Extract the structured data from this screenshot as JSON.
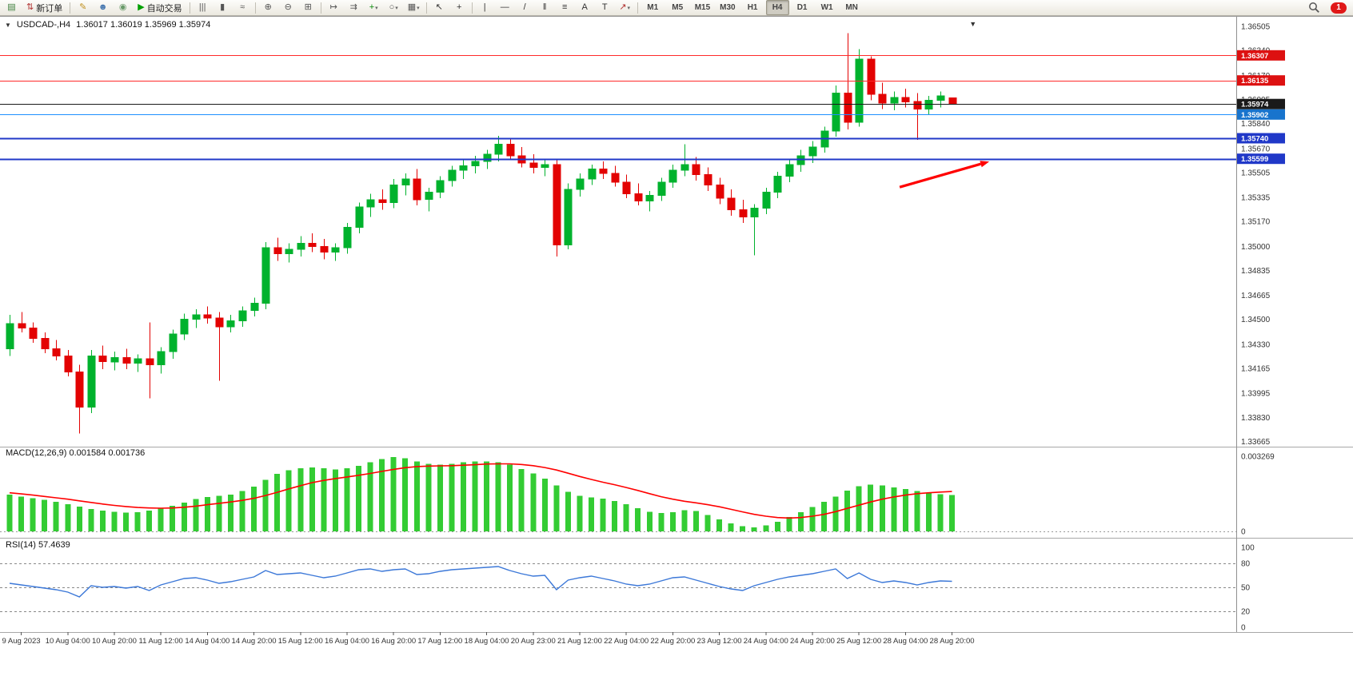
{
  "window": {
    "collapse_glyph": "▼",
    "title": "USDCAD-,H4",
    "ohlc": "1.36017 1.36019 1.35969 1.35974"
  },
  "toolbar": {
    "items": [
      {
        "name": "new-chart-button",
        "glyph": "▤",
        "color": "#3a7d3a"
      },
      {
        "name": "new-order-button",
        "glyph": "⇅",
        "color": "#b03030",
        "label": "新订单"
      },
      {
        "sep": true
      },
      {
        "name": "metaeditor-button",
        "glyph": "✎",
        "color": "#c09020"
      },
      {
        "name": "profiles-button",
        "glyph": "☻",
        "color": "#4878b0"
      },
      {
        "name": "market-watch-button",
        "glyph": "◉",
        "color": "#6a9a6a"
      },
      {
        "name": "autotrading-button",
        "glyph": "▶",
        "color": "#00a000",
        "label": "自动交易"
      },
      {
        "sep": true
      },
      {
        "name": "bar-chart-button",
        "glyph": "|||",
        "color": "#555"
      },
      {
        "name": "candlestick-button",
        "glyph": "▮",
        "color": "#555"
      },
      {
        "name": "line-chart-button",
        "glyph": "≈",
        "color": "#555"
      },
      {
        "sep": true
      },
      {
        "name": "zoom-in-button",
        "glyph": "⊕",
        "color": "#555"
      },
      {
        "name": "zoom-out-button",
        "glyph": "⊖",
        "color": "#555"
      },
      {
        "name": "tile-windows-button",
        "glyph": "⊞",
        "color": "#555"
      },
      {
        "sep": true
      },
      {
        "name": "auto-scroll-button",
        "glyph": "↦",
        "color": "#555"
      },
      {
        "name": "chart-shift-button",
        "glyph": "⇉",
        "color": "#555"
      },
      {
        "name": "indicators-button",
        "glyph": "+",
        "color": "#0a8a0a",
        "dd": true
      },
      {
        "name": "periods-button",
        "glyph": "○",
        "color": "#555",
        "dd": true
      },
      {
        "name": "templates-button",
        "glyph": "▦",
        "color": "#555",
        "dd": true
      },
      {
        "sep": true
      },
      {
        "name": "cursor-button",
        "glyph": "↖",
        "color": "#333"
      },
      {
        "name": "crosshair-button",
        "glyph": "+",
        "color": "#333"
      },
      {
        "sep": true
      },
      {
        "name": "vertical-line-button",
        "glyph": "|",
        "color": "#333"
      },
      {
        "name": "horizontal-line-button",
        "glyph": "—",
        "color": "#333"
      },
      {
        "name": "trendline-button",
        "glyph": "/",
        "color": "#333"
      },
      {
        "name": "channel-button",
        "glyph": "‖",
        "color": "#333"
      },
      {
        "name": "fibonacci-button",
        "glyph": "≡",
        "color": "#333"
      },
      {
        "name": "text-button",
        "glyph": "A",
        "color": "#333"
      },
      {
        "name": "label-button",
        "glyph": "T",
        "color": "#333"
      },
      {
        "name": "arrows-button",
        "glyph": "↗",
        "color": "#b03030",
        "dd": true
      },
      {
        "sep": true
      }
    ],
    "timeframes": [
      "M1",
      "M5",
      "M15",
      "M30",
      "H1",
      "H4",
      "D1",
      "W1",
      "MN"
    ],
    "active_timeframe": "H4",
    "notification_count": "1"
  },
  "chart_data": [
    {
      "type": "candlestick",
      "symbol": "USDCAD",
      "timeframe": "H4",
      "title": "USDCAD-,H4",
      "ohlc_display": "1.36017 1.36019 1.35969 1.35974",
      "ylim": [
        1.3364,
        1.3656
      ],
      "colors": {
        "up": "#00B22D",
        "down": "#E30202"
      },
      "candles": [
        [
          1.343,
          1.3453,
          1.3425,
          1.3447
        ],
        [
          1.3447,
          1.3455,
          1.3441,
          1.3444
        ],
        [
          1.3444,
          1.3448,
          1.3434,
          1.3437
        ],
        [
          1.3437,
          1.3441,
          1.3427,
          1.343
        ],
        [
          1.343,
          1.3436,
          1.3422,
          1.3425
        ],
        [
          1.3425,
          1.3429,
          1.3411,
          1.3414
        ],
        [
          1.3414,
          1.3419,
          1.3372,
          1.339
        ],
        [
          1.339,
          1.3429,
          1.3386,
          1.3425
        ],
        [
          1.3425,
          1.3432,
          1.3416,
          1.3421
        ],
        [
          1.3421,
          1.3428,
          1.3415,
          1.3424
        ],
        [
          1.3424,
          1.343,
          1.3416,
          1.342
        ],
        [
          1.342,
          1.3426,
          1.3414,
          1.3423
        ],
        [
          1.3423,
          1.3448,
          1.3396,
          1.3419
        ],
        [
          1.3419,
          1.3431,
          1.3413,
          1.3428
        ],
        [
          1.3428,
          1.3443,
          1.3423,
          1.344
        ],
        [
          1.344,
          1.3454,
          1.3436,
          1.345
        ],
        [
          1.345,
          1.3457,
          1.3444,
          1.3453
        ],
        [
          1.3453,
          1.3459,
          1.3447,
          1.3451
        ],
        [
          1.3451,
          1.3455,
          1.3408,
          1.3445
        ],
        [
          1.3445,
          1.3453,
          1.3441,
          1.3449
        ],
        [
          1.3449,
          1.3459,
          1.3445,
          1.3456
        ],
        [
          1.3456,
          1.3465,
          1.3452,
          1.3461
        ],
        [
          1.3461,
          1.3503,
          1.3457,
          1.3499
        ],
        [
          1.3499,
          1.3506,
          1.349,
          1.3495
        ],
        [
          1.3495,
          1.3502,
          1.3489,
          1.3498
        ],
        [
          1.3498,
          1.3507,
          1.3493,
          1.3502
        ],
        [
          1.3502,
          1.3509,
          1.3496,
          1.35
        ],
        [
          1.35,
          1.3505,
          1.3491,
          1.3496
        ],
        [
          1.3496,
          1.3502,
          1.349,
          1.3499
        ],
        [
          1.3499,
          1.3516,
          1.3495,
          1.3513
        ],
        [
          1.3513,
          1.353,
          1.3509,
          1.3527
        ],
        [
          1.3527,
          1.3536,
          1.352,
          1.3532
        ],
        [
          1.3532,
          1.3539,
          1.3525,
          1.353
        ],
        [
          1.353,
          1.3546,
          1.3526,
          1.3542
        ],
        [
          1.3542,
          1.355,
          1.3535,
          1.3546
        ],
        [
          1.3546,
          1.3553,
          1.3528,
          1.3532
        ],
        [
          1.3532,
          1.354,
          1.3524,
          1.3537
        ],
        [
          1.3537,
          1.3548,
          1.3533,
          1.3545
        ],
        [
          1.3545,
          1.3555,
          1.3541,
          1.3552
        ],
        [
          1.3552,
          1.3559,
          1.3546,
          1.3555
        ],
        [
          1.3555,
          1.3562,
          1.355,
          1.3558
        ],
        [
          1.3558,
          1.3566,
          1.3553,
          1.3563
        ],
        [
          1.3563,
          1.35755,
          1.3558,
          1.357
        ],
        [
          1.357,
          1.3574,
          1.3559,
          1.3562
        ],
        [
          1.3562,
          1.3568,
          1.3554,
          1.3557
        ],
        [
          1.3557,
          1.3563,
          1.355,
          1.3554
        ],
        [
          1.3554,
          1.356,
          1.3548,
          1.3556
        ],
        [
          1.3556,
          1.356,
          1.3493,
          1.3501
        ],
        [
          1.3501,
          1.3543,
          1.3498,
          1.3539
        ],
        [
          1.3539,
          1.355,
          1.3534,
          1.3546
        ],
        [
          1.3546,
          1.3556,
          1.3542,
          1.3553
        ],
        [
          1.3553,
          1.3558,
          1.3546,
          1.355
        ],
        [
          1.355,
          1.3555,
          1.3541,
          1.3544
        ],
        [
          1.3544,
          1.3549,
          1.3533,
          1.3536
        ],
        [
          1.3536,
          1.3543,
          1.3528,
          1.3531
        ],
        [
          1.3531,
          1.3538,
          1.3524,
          1.3535
        ],
        [
          1.3535,
          1.3547,
          1.3531,
          1.3544
        ],
        [
          1.3544,
          1.3556,
          1.354,
          1.3552
        ],
        [
          1.3552,
          1.357,
          1.3548,
          1.3556
        ],
        [
          1.3556,
          1.3561,
          1.3545,
          1.3549
        ],
        [
          1.3549,
          1.3554,
          1.3538,
          1.3542
        ],
        [
          1.3542,
          1.3547,
          1.3529,
          1.3533
        ],
        [
          1.3533,
          1.3539,
          1.3521,
          1.3525
        ],
        [
          1.3525,
          1.3532,
          1.3516,
          1.352
        ],
        [
          1.352,
          1.3529,
          1.3494,
          1.3526
        ],
        [
          1.3526,
          1.354,
          1.3522,
          1.3537
        ],
        [
          1.3537,
          1.3551,
          1.3533,
          1.3548
        ],
        [
          1.3548,
          1.356,
          1.3544,
          1.3556
        ],
        [
          1.3556,
          1.3566,
          1.3551,
          1.3562
        ],
        [
          1.3562,
          1.3572,
          1.3557,
          1.3568
        ],
        [
          1.3568,
          1.3582,
          1.3564,
          1.3579
        ],
        [
          1.3579,
          1.361,
          1.3575,
          1.3605
        ],
        [
          1.3605,
          1.3646,
          1.358,
          1.3585
        ],
        [
          1.3585,
          1.3635,
          1.3582,
          1.3628
        ],
        [
          1.3628,
          1.363,
          1.36,
          1.3604
        ],
        [
          1.3604,
          1.3612,
          1.3594,
          1.3598
        ],
        [
          1.3598,
          1.3606,
          1.3593,
          1.3602
        ],
        [
          1.3602,
          1.3608,
          1.3595,
          1.3599
        ],
        [
          1.3599,
          1.3605,
          1.3573,
          1.3594
        ],
        [
          1.3594,
          1.3603,
          1.359,
          1.36
        ],
        [
          1.36,
          1.3606,
          1.3595,
          1.3603
        ],
        [
          1.36017,
          1.36019,
          1.35969,
          1.35974
        ]
      ],
      "levels": [
        {
          "price": 1.36307,
          "text": "1.36307",
          "color": "#FF2A2A",
          "width": 1,
          "tag_color": "#DD1111",
          "name": "resistance-line-1"
        },
        {
          "price": 1.36135,
          "text": "1.36135",
          "color": "#FF2A2A",
          "width": 1,
          "tag_color": "#DD1111",
          "name": "resistance-line-2"
        },
        {
          "price": 1.35974,
          "text": "1.35974",
          "color": "#1a1a1a",
          "width": 1,
          "tag_color": "#1a1a1a",
          "name": "current-price-line"
        },
        {
          "price": 1.35902,
          "text": "1.35902",
          "color": "#1E90FF",
          "width": 1,
          "tag_color": "#1874CD",
          "name": "support-line-1"
        },
        {
          "price": 1.3574,
          "text": "1.35740",
          "color": "#2038C8",
          "width": 2,
          "tag_color": "#2038C8",
          "name": "support-line-2"
        },
        {
          "price": 1.35599,
          "text": "1.35599",
          "color": "#2038C8",
          "width": 2,
          "tag_color": "#2038C8",
          "name": "support-line-3"
        }
      ],
      "y_axis_labels": [
        "1.36505",
        "1.36340",
        "1.36170",
        "1.36005",
        "1.35840",
        "1.35670",
        "1.35505",
        "1.35335",
        "1.35170",
        "1.35000",
        "1.34835",
        "1.34665",
        "1.34500",
        "1.34330",
        "1.34165",
        "1.33995",
        "1.33830",
        "1.33665"
      ],
      "x_labels": [
        {
          "bar": 1,
          "text": "9 Aug 2023"
        },
        {
          "bar": 5,
          "text": "10 Aug 04:00"
        },
        {
          "bar": 9,
          "text": "10 Aug 20:00"
        },
        {
          "bar": 13,
          "text": "11 Aug 12:00"
        },
        {
          "bar": 17,
          "text": "14 Aug 04:00"
        },
        {
          "bar": 21,
          "text": "14 Aug 20:00"
        },
        {
          "bar": 25,
          "text": "15 Aug 12:00"
        },
        {
          "bar": 29,
          "text": "16 Aug 04:00"
        },
        {
          "bar": 33,
          "text": "16 Aug 20:00"
        },
        {
          "bar": 37,
          "text": "17 Aug 12:00"
        },
        {
          "bar": 41,
          "text": "18 Aug 04:00"
        },
        {
          "bar": 45,
          "text": "20 Aug 23:00"
        },
        {
          "bar": 49,
          "text": "21 Aug 12:00"
        },
        {
          "bar": 53,
          "text": "22 Aug 04:00"
        },
        {
          "bar": 57,
          "text": "22 Aug 20:00"
        },
        {
          "bar": 61,
          "text": "23 Aug 12:00"
        },
        {
          "bar": 65,
          "text": "24 Aug 04:00"
        },
        {
          "bar": 69,
          "text": "24 Aug 20:00"
        },
        {
          "bar": 73,
          "text": "25 Aug 12:00"
        },
        {
          "bar": 77,
          "text": "28 Aug 04:00"
        },
        {
          "bar": 81,
          "text": "28 Aug 20:00"
        }
      ],
      "arrow": {
        "from_bar": 76.5,
        "from_price": 1.35405,
        "to_bar": 84.2,
        "to_price": 1.3558,
        "color": "#FF0000"
      },
      "shift_marker_bar": 82.8
    },
    {
      "type": "bar",
      "name": "MACD(12,26,9)",
      "label_full": "MACD(12,26,9) 0.001584 0.001736",
      "values": [
        "0.001584",
        "0.001736"
      ],
      "ylim": [
        0,
        0.003269
      ],
      "colors": {
        "histogram": "#33CC33",
        "signal": "#FF0000"
      },
      "axis_labels": [
        {
          "v": 0.003269,
          "t": "0.003269"
        },
        {
          "v": 0,
          "t": "0"
        }
      ],
      "histogram": [
        0.0016,
        0.00152,
        0.00145,
        0.00138,
        0.00128,
        0.00118,
        0.00108,
        0.00098,
        0.0009,
        0.00085,
        0.00082,
        0.00084,
        0.0009,
        0.001,
        0.00112,
        0.00126,
        0.0014,
        0.0015,
        0.00155,
        0.0016,
        0.00175,
        0.00195,
        0.00225,
        0.0025,
        0.00266,
        0.00275,
        0.00278,
        0.00274,
        0.0027,
        0.00274,
        0.00285,
        0.003,
        0.00314,
        0.00324,
        0.00318,
        0.00305,
        0.00294,
        0.0029,
        0.00294,
        0.003,
        0.00304,
        0.00305,
        0.003,
        0.0029,
        0.00272,
        0.00252,
        0.0023,
        0.002,
        0.00172,
        0.00155,
        0.00148,
        0.00142,
        0.00132,
        0.00118,
        0.001,
        0.00086,
        0.0008,
        0.00084,
        0.00092,
        0.00088,
        0.00072,
        0.00052,
        0.00034,
        0.00022,
        0.00018,
        0.00026,
        0.00042,
        0.00062,
        0.00084,
        0.00106,
        0.00128,
        0.00152,
        0.00178,
        0.00196,
        0.00204,
        0.002,
        0.00192,
        0.00184,
        0.00176,
        0.00168,
        0.00162,
        0.001584
      ],
      "signal": [
        0.00168,
        0.00163,
        0.00158,
        0.00152,
        0.00146,
        0.0014,
        0.00133,
        0.00126,
        0.00119,
        0.00113,
        0.00108,
        0.00104,
        0.00102,
        0.00101,
        0.00102,
        0.00105,
        0.0011,
        0.00116,
        0.00122,
        0.00128,
        0.00135,
        0.00144,
        0.00156,
        0.0017,
        0.00185,
        0.00199,
        0.00212,
        0.00222,
        0.0023,
        0.00237,
        0.00244,
        0.00252,
        0.00261,
        0.0027,
        0.00277,
        0.00282,
        0.00284,
        0.00285,
        0.00286,
        0.00288,
        0.0029,
        0.00293,
        0.00294,
        0.00294,
        0.00291,
        0.00286,
        0.00278,
        0.00267,
        0.00253,
        0.00239,
        0.00226,
        0.00214,
        0.00203,
        0.00191,
        0.00178,
        0.00164,
        0.00151,
        0.0014,
        0.00131,
        0.00124,
        0.00116,
        0.00107,
        0.00096,
        0.00085,
        0.00074,
        0.00066,
        0.0006,
        0.00058,
        0.0006,
        0.00066,
        0.00074,
        0.00086,
        0.001,
        0.00114,
        0.00128,
        0.0014,
        0.0015,
        0.00158,
        0.00164,
        0.00168,
        0.00171,
        0.001736
      ]
    },
    {
      "type": "line",
      "name": "RSI(14)",
      "label_full": "RSI(14) 57.4639",
      "value_label": "57.4639",
      "ylim": [
        0,
        100
      ],
      "levels": [
        80,
        50,
        20
      ],
      "colors": {
        "line": "#3C78D8"
      },
      "axis_labels": [
        {
          "v": 100,
          "t": "100"
        },
        {
          "v": 80,
          "t": "80"
        },
        {
          "v": 50,
          "t": "50"
        },
        {
          "v": 20,
          "t": "20"
        },
        {
          "v": 0,
          "t": "0"
        }
      ],
      "values": [
        55,
        53,
        51,
        49,
        47,
        44,
        38,
        52,
        50,
        51,
        49,
        51,
        46,
        53,
        57,
        61,
        62,
        59,
        55,
        57,
        60,
        63,
        71,
        66,
        67,
        68,
        65,
        62,
        64,
        68,
        72,
        73,
        70,
        72,
        73,
        66,
        67,
        70,
        72,
        73,
        74,
        75,
        76,
        71,
        67,
        64,
        65,
        47,
        59,
        62,
        64,
        61,
        58,
        54,
        52,
        54,
        58,
        62,
        63,
        59,
        55,
        51,
        48,
        46,
        52,
        56,
        60,
        63,
        65,
        67,
        70,
        73,
        61,
        68,
        60,
        56,
        58,
        56,
        53,
        56,
        58,
        57.5
      ]
    }
  ]
}
